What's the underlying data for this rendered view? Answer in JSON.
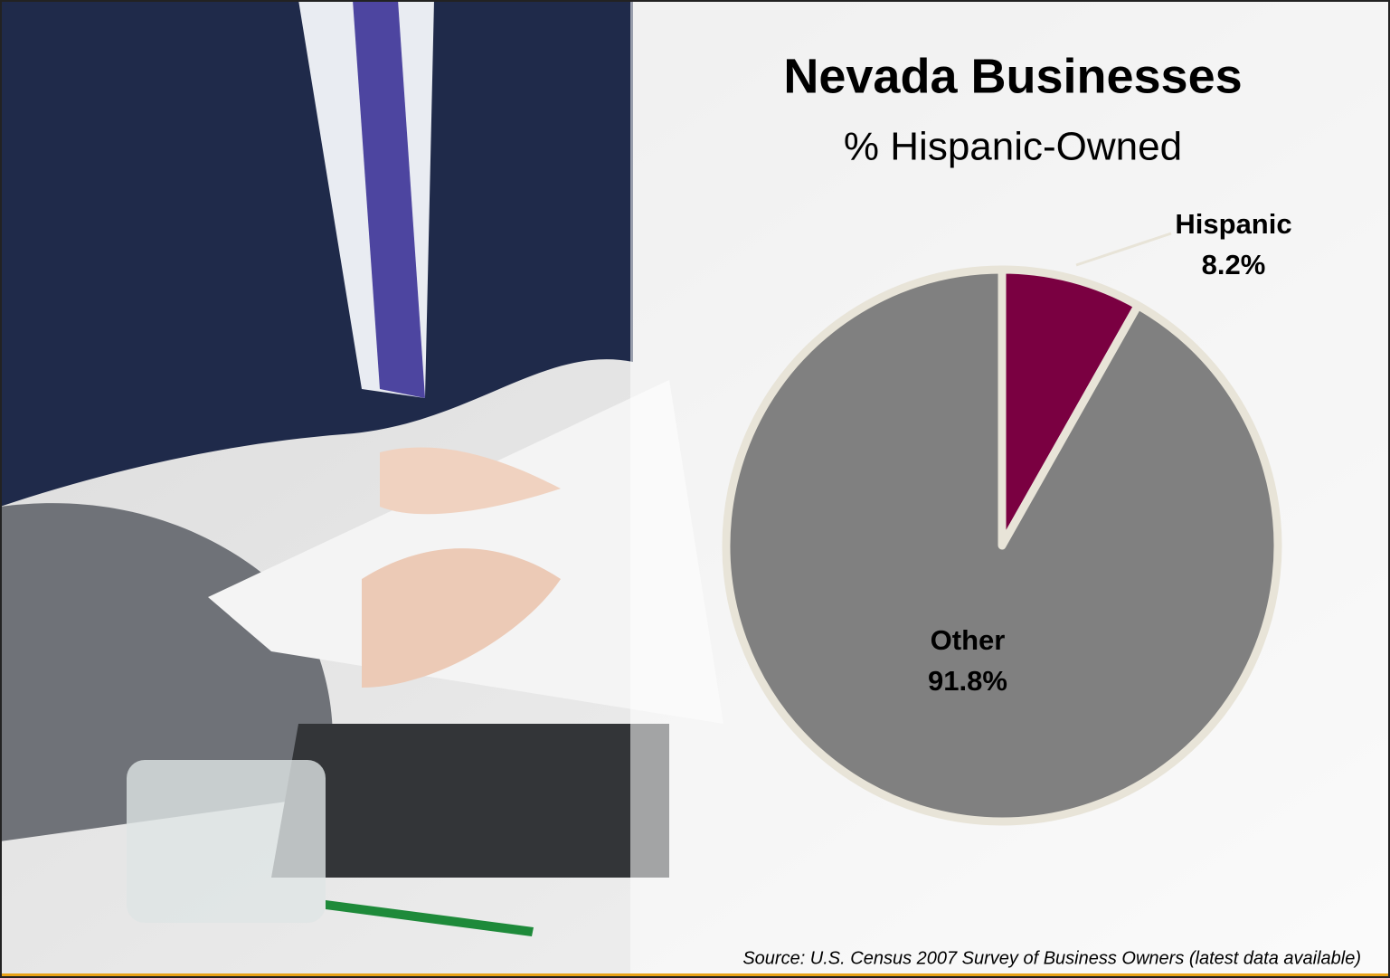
{
  "chart_data": {
    "type": "pie",
    "title": "Nevada Businesses",
    "subtitle": "% Hispanic-Owned",
    "categories": [
      "Hispanic",
      "Other"
    ],
    "values": [
      8.2,
      91.8
    ],
    "value_labels": [
      "8.2%",
      "91.8%"
    ],
    "colors": [
      "#7a0041",
      "#808080"
    ],
    "source": "Source: U.S. Census 2007 Survey of Business Owners (latest data available)"
  }
}
